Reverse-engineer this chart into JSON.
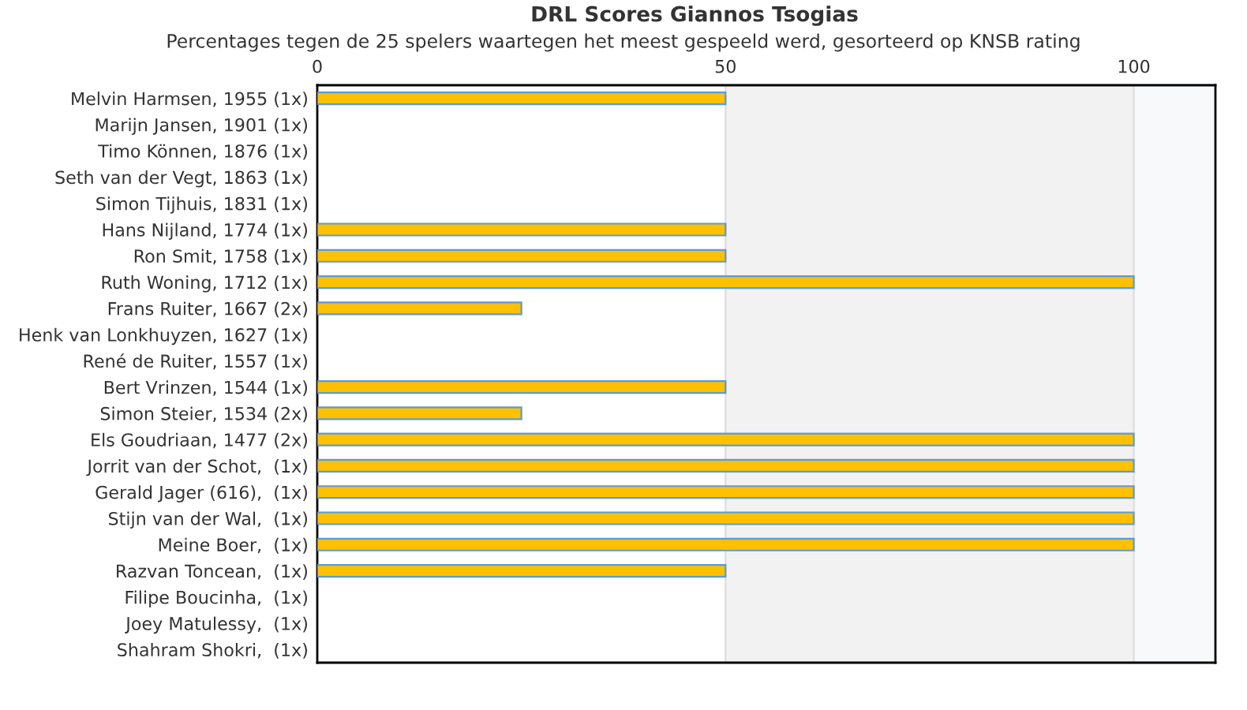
{
  "chart_data": {
    "type": "bar",
    "orientation": "horizontal",
    "title": "DRL Scores Giannos Tsogias",
    "subtitle": "Percentages tegen de 25 spelers waartegen het meest gespeeld werd, gesorteerd op KNSB rating",
    "categories": [
      "Melvin Harmsen, 1955 (1x)",
      "Marijn Jansen, 1901 (1x)",
      "Timo Können, 1876 (1x)",
      "Seth van der Vegt, 1863 (1x)",
      "Simon Tijhuis, 1831 (1x)",
      "Hans Nijland, 1774 (1x)",
      "Ron Smit, 1758 (1x)",
      "Ruth Woning, 1712 (1x)",
      "Frans Ruiter, 1667 (2x)",
      "Henk van Lonkhuyzen, 1627 (1x)",
      "René de Ruiter, 1557 (1x)",
      "Bert Vrinzen, 1544 (1x)",
      "Simon Steier, 1534 (2x)",
      "Els Goudriaan, 1477 (2x)",
      "Jorrit van der Schot,  (1x)",
      "Gerald Jager (616),  (1x)",
      "Stijn van der Wal,  (1x)",
      "Meine Boer,  (1x)",
      "Razvan Toncean,  (1x)",
      "Filipe Boucinha,  (1x)",
      "Joey Matulessy,  (1x)",
      "Shahram Shokri,  (1x)"
    ],
    "values": [
      50,
      0,
      0,
      0,
      0,
      50,
      50,
      100,
      25,
      0,
      0,
      50,
      25,
      100,
      100,
      100,
      100,
      100,
      50,
      0,
      0,
      0
    ],
    "color": "#ffc000",
    "xlim": [
      0,
      110
    ],
    "xticks": [
      0,
      50,
      100
    ],
    "grid": "x",
    "bands": [
      {
        "axis": "x",
        "from": 50,
        "to": 100,
        "color": "#f2f2f2"
      },
      {
        "axis": "x",
        "from": 100,
        "to": 110,
        "color": "#f7f9fb"
      }
    ]
  }
}
